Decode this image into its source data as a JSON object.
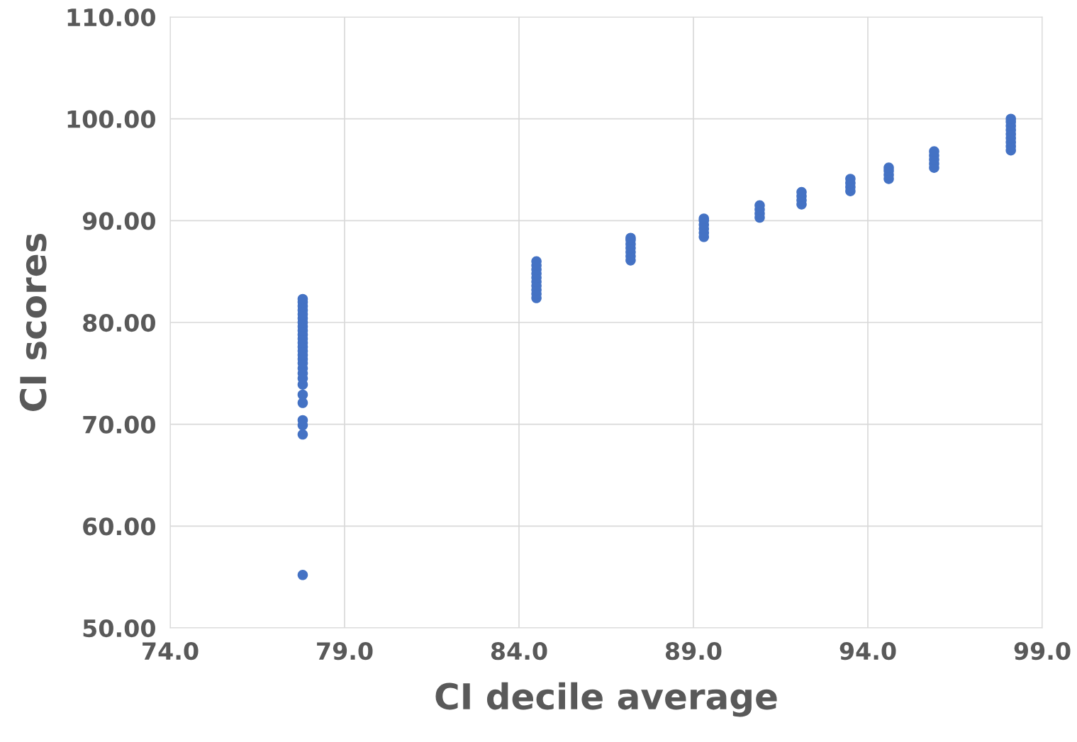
{
  "chart_data": {
    "type": "scatter",
    "xlabel": "CI decile average",
    "ylabel": "CI scores",
    "x": [
      77.8,
      77.8,
      77.8,
      77.8,
      77.8,
      77.8,
      77.8,
      77.8,
      77.8,
      77.8,
      77.8,
      77.8,
      77.8,
      77.8,
      77.8,
      77.8,
      77.8,
      77.8,
      77.8,
      77.8,
      77.8,
      77.8,
      77.8,
      77.8,
      77.8,
      77.8,
      77.8,
      84.5,
      84.5,
      84.5,
      84.5,
      84.5,
      84.5,
      84.5,
      84.5,
      84.5,
      84.5,
      87.2,
      87.2,
      87.2,
      87.2,
      87.2,
      87.2,
      87.2,
      89.3,
      89.3,
      89.3,
      89.3,
      89.3,
      89.3,
      90.9,
      90.9,
      90.9,
      90.9,
      92.1,
      92.1,
      92.1,
      92.1,
      93.5,
      93.5,
      93.5,
      93.5,
      94.6,
      94.6,
      94.6,
      94.6,
      95.9,
      95.9,
      95.9,
      95.9,
      95.9,
      98.1,
      98.1,
      98.1,
      98.1,
      98.1,
      98.1,
      98.1,
      98.1,
      98.1
    ],
    "values": [
      55.2,
      69.0,
      69.9,
      70.4,
      72.1,
      72.9,
      73.9,
      74.5,
      75.0,
      75.5,
      76.0,
      76.4,
      76.8,
      77.2,
      77.6,
      78.0,
      78.4,
      78.8,
      79.2,
      79.6,
      80.0,
      80.4,
      80.8,
      81.2,
      81.6,
      82.0,
      82.3,
      82.4,
      82.8,
      83.2,
      83.6,
      84.0,
      84.4,
      84.8,
      85.2,
      85.6,
      86.0,
      86.1,
      86.5,
      86.9,
      87.3,
      87.7,
      88.1,
      88.3,
      88.4,
      88.8,
      89.2,
      89.6,
      90.0,
      90.2,
      90.3,
      90.7,
      91.1,
      91.5,
      91.6,
      92.0,
      92.4,
      92.8,
      92.9,
      93.3,
      93.7,
      94.1,
      94.1,
      94.5,
      94.9,
      95.2,
      95.2,
      95.6,
      96.0,
      96.4,
      96.8,
      96.9,
      97.3,
      97.7,
      98.1,
      98.5,
      98.9,
      99.3,
      99.7,
      100.0
    ],
    "color": "#4472c4",
    "marker": "circle",
    "grid": true,
    "xlim": [
      74,
      99
    ],
    "xticks": [
      {
        "value": 74,
        "label": "74.0"
      },
      {
        "value": 79,
        "label": "79.0"
      },
      {
        "value": 84,
        "label": "84.0"
      },
      {
        "value": 89,
        "label": "89.0"
      },
      {
        "value": 94,
        "label": "94.0"
      },
      {
        "value": 99,
        "label": "99.0"
      }
    ],
    "ylim": [
      50,
      110
    ],
    "yticks": [
      {
        "value": 50,
        "label": "50.00"
      },
      {
        "value": 60,
        "label": "60.00"
      },
      {
        "value": 70,
        "label": "70.00"
      },
      {
        "value": 80,
        "label": "80.00"
      },
      {
        "value": 90,
        "label": "90.00"
      },
      {
        "value": 100,
        "label": "100.00"
      },
      {
        "value": 110,
        "label": "110.00"
      }
    ]
  }
}
